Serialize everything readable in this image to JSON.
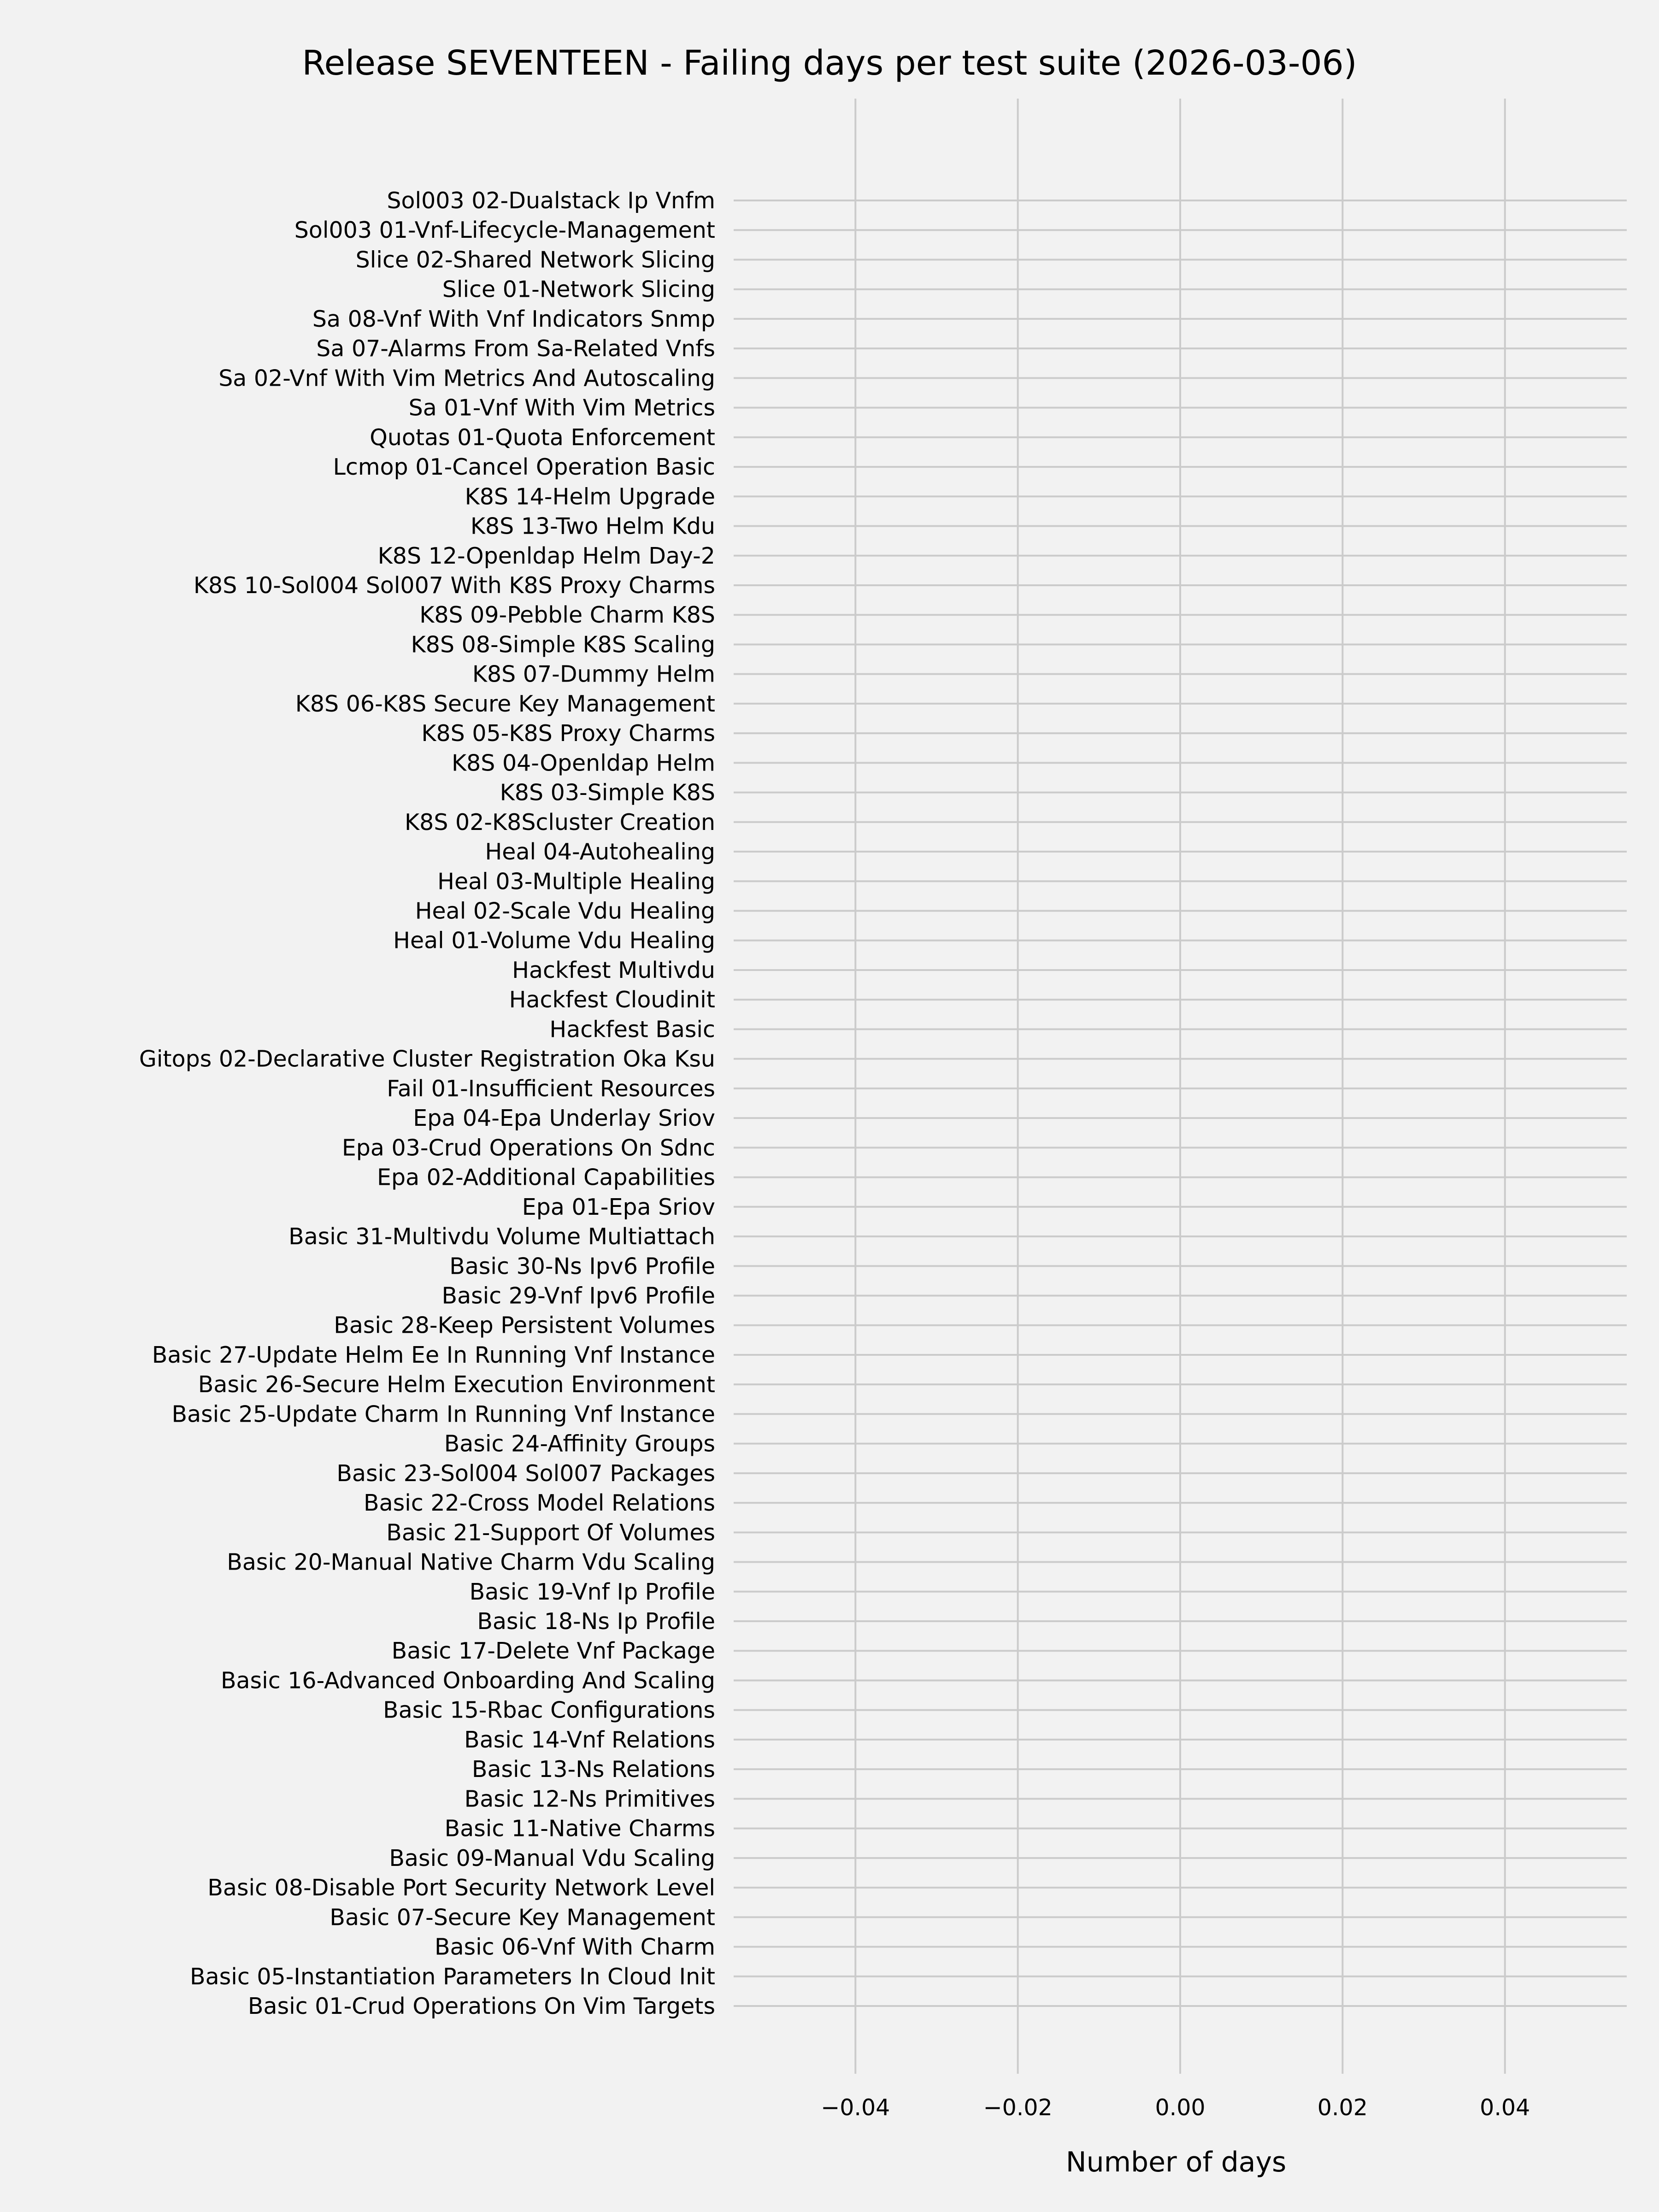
{
  "chart_data": {
    "type": "bar",
    "orientation": "horizontal",
    "title": "Release SEVENTEEN - Failing days per test suite (2026-03-06)",
    "xlabel": "Number of days",
    "ylabel": "",
    "xlim": [
      -0.055,
      0.055
    ],
    "xticks": [
      -0.04,
      -0.02,
      0.0,
      0.02,
      0.04
    ],
    "xtick_labels": [
      "−0.04",
      "−0.02",
      "0.00",
      "0.02",
      "0.04"
    ],
    "grid": true,
    "colors": {
      "background": "#f2f2f2",
      "grid": "#cbcbcb",
      "text": "#000000"
    },
    "categories": [
      "Sol003 02-Dualstack Ip Vnfm",
      "Sol003 01-Vnf-Lifecycle-Management",
      "Slice 02-Shared Network Slicing",
      "Slice 01-Network Slicing",
      "Sa 08-Vnf With Vnf Indicators Snmp",
      "Sa 07-Alarms From Sa-Related Vnfs",
      "Sa 02-Vnf With Vim Metrics And Autoscaling",
      "Sa 01-Vnf With Vim Metrics",
      "Quotas 01-Quota Enforcement",
      "Lcmop 01-Cancel Operation Basic",
      "K8S 14-Helm Upgrade",
      "K8S 13-Two Helm Kdu",
      "K8S 12-Openldap Helm Day-2",
      "K8S 10-Sol004 Sol007 With K8S Proxy Charms",
      "K8S 09-Pebble Charm K8S",
      "K8S 08-Simple K8S Scaling",
      "K8S 07-Dummy Helm",
      "K8S 06-K8S Secure Key Management",
      "K8S 05-K8S Proxy Charms",
      "K8S 04-Openldap Helm",
      "K8S 03-Simple K8S",
      "K8S 02-K8Scluster Creation",
      "Heal 04-Autohealing",
      "Heal 03-Multiple Healing",
      "Heal 02-Scale Vdu Healing",
      "Heal 01-Volume Vdu Healing",
      "Hackfest Multivdu",
      "Hackfest Cloudinit",
      "Hackfest Basic",
      "Gitops 02-Declarative Cluster Registration Oka Ksu",
      "Fail 01-Insufficient Resources",
      "Epa 04-Epa Underlay Sriov",
      "Epa 03-Crud Operations On Sdnc",
      "Epa 02-Additional Capabilities",
      "Epa 01-Epa Sriov",
      "Basic 31-Multivdu Volume Multiattach",
      "Basic 30-Ns Ipv6 Profile",
      "Basic 29-Vnf Ipv6 Profile",
      "Basic 28-Keep Persistent Volumes",
      "Basic 27-Update Helm Ee In Running Vnf Instance",
      "Basic 26-Secure Helm Execution Environment",
      "Basic 25-Update Charm In Running Vnf Instance",
      "Basic 24-Affinity Groups",
      "Basic 23-Sol004 Sol007 Packages",
      "Basic 22-Cross Model Relations",
      "Basic 21-Support Of Volumes",
      "Basic 20-Manual Native Charm Vdu Scaling",
      "Basic 19-Vnf Ip Profile",
      "Basic 18-Ns Ip Profile",
      "Basic 17-Delete Vnf Package",
      "Basic 16-Advanced Onboarding And Scaling",
      "Basic 15-Rbac Configurations",
      "Basic 14-Vnf Relations",
      "Basic 13-Ns Relations",
      "Basic 12-Ns Primitives",
      "Basic 11-Native Charms",
      "Basic 09-Manual Vdu Scaling",
      "Basic 08-Disable Port Security Network Level",
      "Basic 07-Secure Key Management",
      "Basic 06-Vnf With Charm",
      "Basic 05-Instantiation Parameters In Cloud Init",
      "Basic 01-Crud Operations On Vim Targets"
    ],
    "values": [
      0,
      0,
      0,
      0,
      0,
      0,
      0,
      0,
      0,
      0,
      0,
      0,
      0,
      0,
      0,
      0,
      0,
      0,
      0,
      0,
      0,
      0,
      0,
      0,
      0,
      0,
      0,
      0,
      0,
      0,
      0,
      0,
      0,
      0,
      0,
      0,
      0,
      0,
      0,
      0,
      0,
      0,
      0,
      0,
      0,
      0,
      0,
      0,
      0,
      0,
      0,
      0,
      0,
      0,
      0,
      0,
      0,
      0,
      0,
      0,
      0,
      0
    ]
  }
}
